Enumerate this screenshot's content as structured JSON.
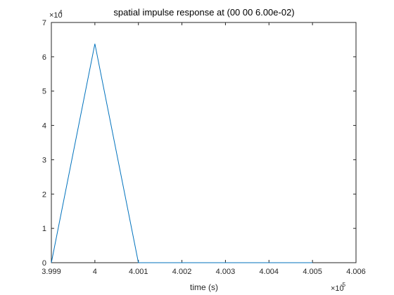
{
  "chart_data": {
    "type": "line",
    "title": "spatial impulse response at (00 00 6.00e-02)",
    "xlabel": "time (s)",
    "ylabel": "",
    "x_multiplier": "×10",
    "x_exponent": "-5",
    "y_multiplier": "×10",
    "y_exponent": "4",
    "xlim": [
      3.999,
      4.006
    ],
    "ylim": [
      0,
      7
    ],
    "x_ticks": [
      3.999,
      4,
      4.001,
      4.002,
      4.003,
      4.004,
      4.005,
      4.006
    ],
    "x_tick_labels": [
      "3.999",
      "4",
      "4.001",
      "4.002",
      "4.003",
      "4.004",
      "4.005",
      "4.006"
    ],
    "y_ticks": [
      0,
      1,
      2,
      3,
      4,
      5,
      6,
      7
    ],
    "y_tick_labels": [
      "0",
      "1",
      "2",
      "3",
      "4",
      "5",
      "6",
      "7"
    ],
    "grid": false,
    "line_color": "#0072BD",
    "series": [
      {
        "x": [
          3.999,
          4.0,
          4.001,
          4.002,
          4.003,
          4.004,
          4.005
        ],
        "y": [
          0,
          6.38,
          0,
          0,
          0,
          0,
          0
        ]
      }
    ]
  }
}
